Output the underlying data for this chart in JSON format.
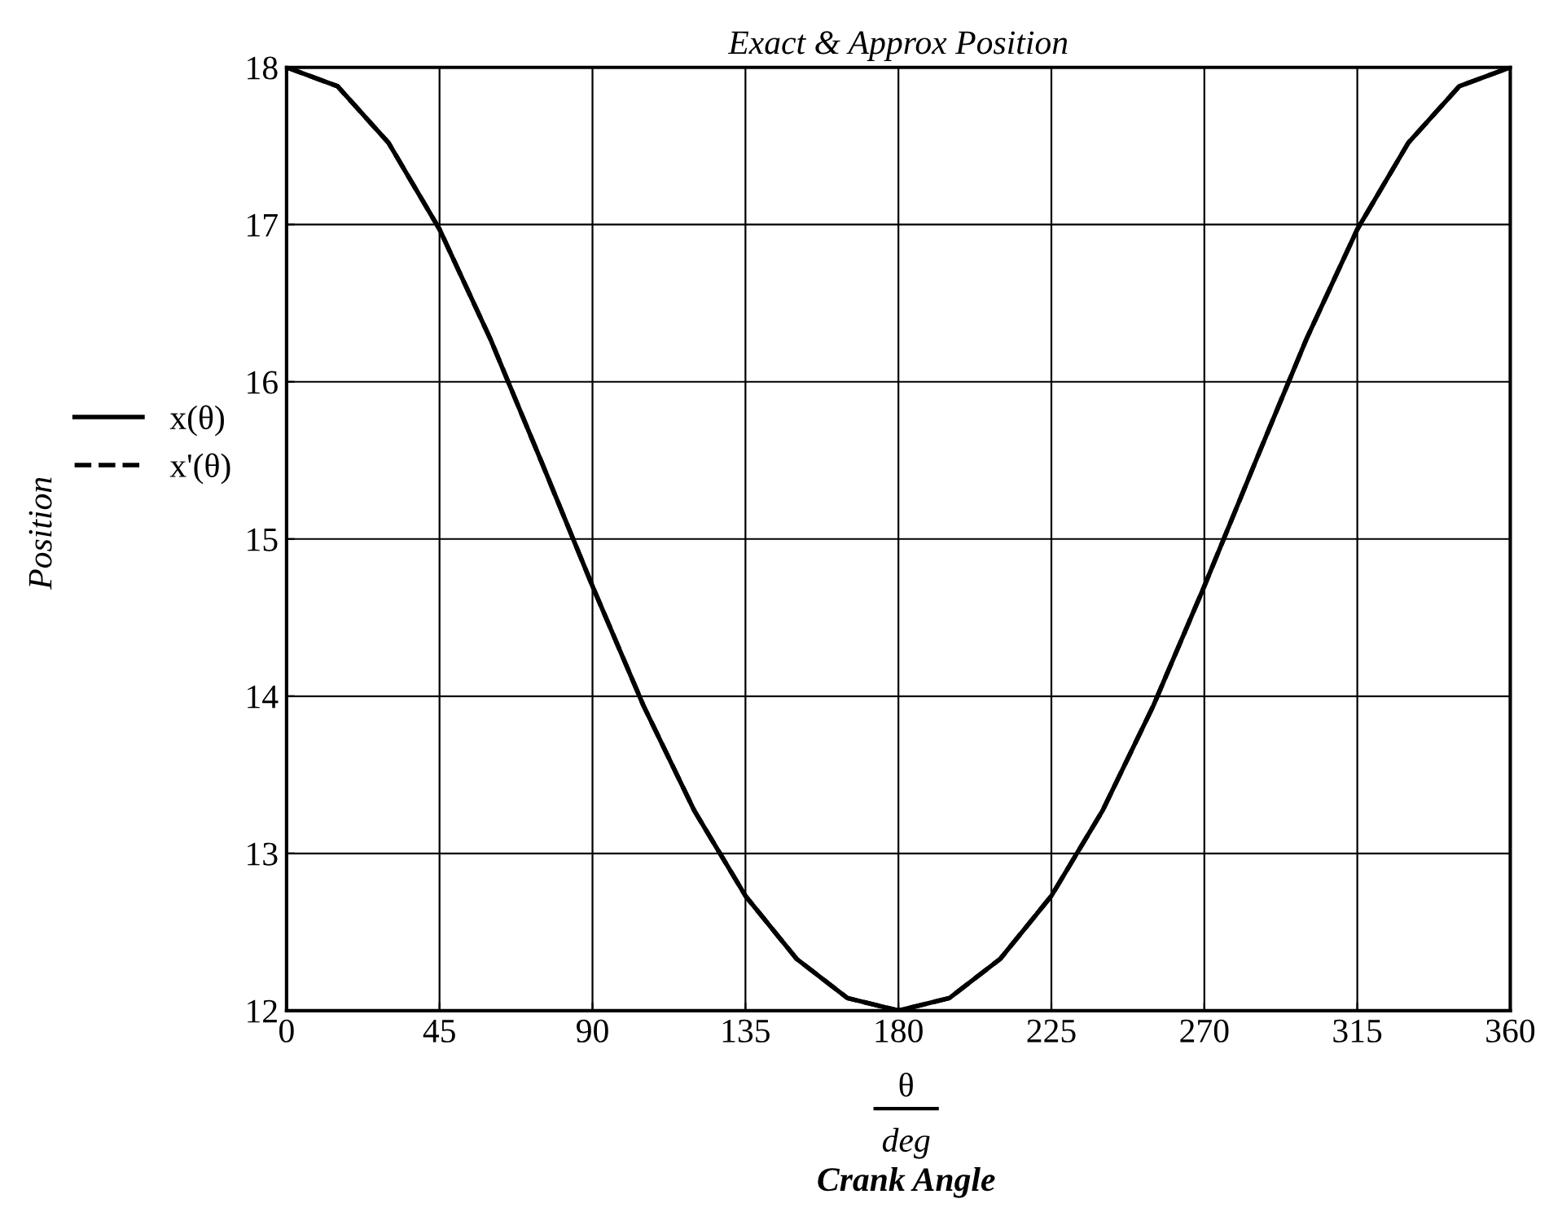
{
  "chart_data": {
    "type": "line",
    "title": "Exact & Approx Position",
    "xlabel": "Crank Angle",
    "annotations": [
      "θ",
      "deg",
      "Position"
    ],
    "x": [
      0,
      15,
      30,
      45,
      60,
      75,
      90,
      105,
      120,
      135,
      150,
      165,
      180,
      195,
      210,
      225,
      240,
      255,
      270,
      285,
      300,
      315,
      330,
      345,
      360
    ],
    "series": [
      {
        "name": "x(θ)",
        "color": "#000000",
        "line_style": "solid",
        "values": [
          18,
          17.88,
          17.52,
          16.97,
          16.27,
          15.49,
          14.7,
          13.94,
          13.27,
          12.73,
          12.33,
          12.08,
          12,
          12.08,
          12.33,
          12.73,
          13.27,
          13.94,
          14.7,
          15.49,
          16.27,
          16.97,
          17.52,
          17.88,
          18
        ]
      },
      {
        "name": "x'(θ)",
        "color": "#000000",
        "line_style": "dashed",
        "values": [
          18,
          17.88,
          17.52,
          16.97,
          16.27,
          15.49,
          14.7,
          13.94,
          13.27,
          12.73,
          12.33,
          12.08,
          12,
          12.08,
          12.33,
          12.73,
          13.27,
          13.94,
          14.7,
          15.49,
          16.27,
          16.97,
          17.52,
          17.88,
          18
        ]
      }
    ],
    "xlim": [
      0,
      360
    ],
    "xticks": [
      0,
      45,
      90,
      135,
      180,
      225,
      270,
      315,
      360
    ],
    "ylim": [
      12,
      18
    ],
    "yticks": [
      12,
      13,
      14,
      15,
      16,
      17,
      18
    ],
    "grid": true,
    "legend": "left",
    "marker": "none"
  }
}
